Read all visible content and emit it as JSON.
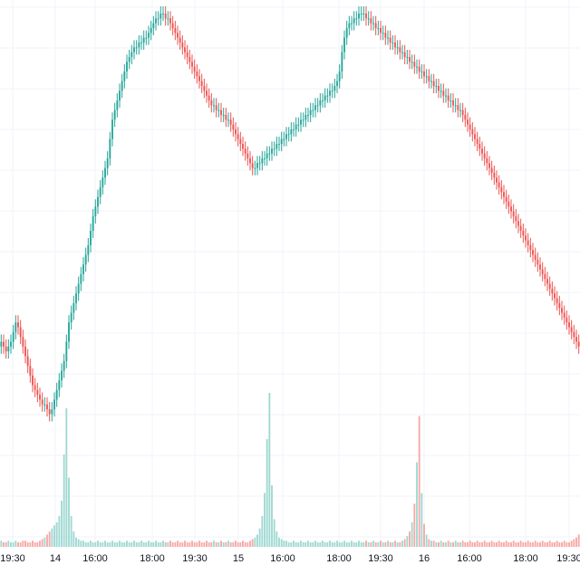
{
  "theme": {
    "up_color": "#26a69a",
    "down_color": "#ef5350",
    "up_volume_color": "#9fd9d2",
    "down_volume_color": "#f7a9a7",
    "grid_color": "#f0f3fa",
    "background": "#ffffff",
    "axis_text_color": "#131722"
  },
  "chart_data": {
    "type": "candlestick",
    "title": "",
    "xlabel": "",
    "ylabel": "",
    "grid": true,
    "x_ticks": [
      "19:30",
      "14",
      "16:00",
      "18:00",
      "19:30",
      "15",
      "16:00",
      "18:00",
      "19:30",
      "16",
      "16:00",
      "18:00",
      "19:30"
    ],
    "price_ylim": [
      0,
      100
    ],
    "volume_ylim": [
      0,
      100
    ],
    "price_series": {
      "name": "",
      "close": [
        32,
        31,
        30,
        31,
        32,
        34,
        36,
        35,
        33,
        31,
        29,
        27,
        25,
        23,
        22,
        21,
        20,
        19,
        19,
        18,
        17,
        18,
        20,
        22,
        24,
        26,
        28,
        32,
        36,
        38,
        40,
        42,
        44,
        46,
        48,
        50,
        52,
        55,
        58,
        60,
        62,
        64,
        66,
        68,
        70,
        74,
        78,
        80,
        82,
        84,
        86,
        88,
        90,
        91,
        92,
        93,
        93,
        94,
        94,
        95,
        95,
        96,
        97,
        98,
        99,
        99,
        100,
        100,
        99,
        99,
        98,
        97,
        96,
        95,
        94,
        93,
        92,
        91,
        90,
        89,
        88,
        87,
        86,
        85,
        84,
        83,
        82,
        81,
        81,
        80,
        80,
        79,
        79,
        78,
        78,
        77,
        76,
        75,
        74,
        73,
        72,
        71,
        70,
        69,
        68,
        68,
        69,
        69,
        70,
        70,
        71,
        71,
        72,
        72,
        73,
        73,
        74,
        74,
        75,
        75,
        76,
        76,
        77,
        77,
        78,
        78,
        79,
        79,
        80,
        80,
        81,
        81,
        82,
        82,
        83,
        83,
        84,
        84,
        85,
        86,
        88,
        92,
        95,
        97,
        98,
        98,
        99,
        99,
        100,
        100,
        100,
        99,
        99,
        98,
        98,
        97,
        97,
        96,
        96,
        95,
        95,
        94,
        94,
        93,
        93,
        92,
        92,
        91,
        91,
        90,
        90,
        89,
        89,
        88,
        88,
        87,
        87,
        86,
        86,
        85,
        85,
        84,
        84,
        83,
        83,
        82,
        82,
        81,
        81,
        80,
        80,
        79,
        78,
        77,
        76,
        75,
        74,
        73,
        72,
        71,
        70,
        69,
        68,
        67,
        66,
        65,
        64,
        63,
        62,
        61,
        60,
        59,
        58,
        57,
        56,
        55,
        54,
        53,
        52,
        51,
        50,
        49,
        48,
        47,
        46,
        45,
        44,
        43,
        42,
        41,
        40,
        39,
        38,
        37,
        36,
        35,
        34,
        33,
        32,
        31
      ]
    },
    "volume_series": {
      "name": "",
      "values": [
        4,
        3,
        3,
        4,
        3,
        3,
        4,
        3,
        3,
        4,
        4,
        3,
        3,
        4,
        3,
        3,
        4,
        5,
        6,
        8,
        10,
        12,
        14,
        16,
        20,
        30,
        60,
        90,
        45,
        20,
        10,
        6,
        5,
        4,
        4,
        3,
        3,
        4,
        3,
        3,
        4,
        3,
        3,
        4,
        3,
        3,
        4,
        3,
        3,
        4,
        3,
        3,
        4,
        3,
        3,
        4,
        3,
        3,
        4,
        3,
        3,
        4,
        3,
        3,
        4,
        3,
        3,
        4,
        3,
        3,
        4,
        3,
        3,
        4,
        3,
        3,
        4,
        3,
        3,
        4,
        3,
        3,
        4,
        3,
        3,
        4,
        3,
        3,
        4,
        3,
        3,
        4,
        3,
        3,
        4,
        3,
        3,
        4,
        3,
        3,
        4,
        3,
        3,
        4,
        5,
        6,
        8,
        12,
        20,
        35,
        70,
        100,
        40,
        18,
        10,
        6,
        5,
        4,
        4,
        3,
        3,
        4,
        3,
        3,
        4,
        3,
        3,
        4,
        3,
        3,
        4,
        3,
        3,
        4,
        3,
        3,
        4,
        3,
        3,
        4,
        3,
        3,
        4,
        3,
        3,
        4,
        3,
        3,
        4,
        3,
        3,
        4,
        3,
        3,
        4,
        3,
        3,
        4,
        3,
        3,
        4,
        3,
        3,
        4,
        3,
        3,
        4,
        5,
        7,
        10,
        16,
        28,
        55,
        85,
        35,
        15,
        8,
        5,
        4,
        4,
        3,
        3,
        4,
        3,
        3,
        4,
        3,
        3,
        4,
        3,
        3,
        4,
        3,
        3,
        4,
        3,
        3,
        4,
        3,
        3,
        4,
        3,
        3,
        4,
        3,
        3,
        4,
        3,
        3,
        4,
        3,
        3,
        4,
        3,
        3,
        4,
        3,
        3,
        4,
        3,
        3,
        4,
        3,
        3,
        4,
        3,
        3,
        4,
        3,
        3,
        4,
        3,
        3,
        4,
        3,
        3,
        4,
        5,
        6,
        8
      ]
    }
  }
}
